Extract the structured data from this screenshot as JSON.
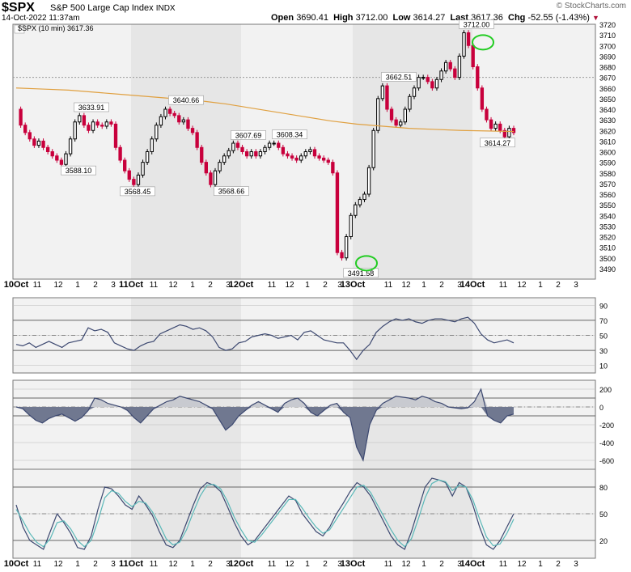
{
  "header": {
    "symbol": "$SPX",
    "name": "S&P 500 Large Cap Index",
    "exchange": "INDX",
    "datetime": "14-Oct-2022 11:37am",
    "brand": "© StockCharts.com",
    "open_label": "Open",
    "open": "3690.41",
    "high_label": "High",
    "high": "3712.00",
    "low_label": "Low",
    "low": "3614.27",
    "last_label": "Last",
    "last": "3617.36",
    "chg_label": "Chg",
    "chg": "-52.55 (-1.43%)",
    "legend": "$SPX (10 min) 3617.36"
  },
  "colors": {
    "up": "#000000",
    "down": "#c8003c",
    "ma": "#e0a040",
    "line": "#3c4870",
    "fast": "#3c4870",
    "slow": "#5ab8b8",
    "fill": "#707890",
    "circle": "#22cc22",
    "shade": "#e6e6e6"
  },
  "chart_data": [
    {
      "type": "candlestick",
      "title": "$SPX (10 min) 3617.36",
      "ylim": [
        3480,
        3720
      ],
      "y_ticks": [
        3490,
        3500,
        3510,
        3520,
        3530,
        3540,
        3550,
        3560,
        3570,
        3580,
        3590,
        3600,
        3610,
        3620,
        3630,
        3640,
        3650,
        3660,
        3670,
        3680,
        3690,
        3700,
        3710,
        3720
      ],
      "x_tick_labels": [
        "10Oct",
        "11",
        "12",
        "1",
        "2",
        "3",
        "11Oct",
        "11",
        "12",
        "1",
        "2",
        "3",
        "12Oct",
        "11",
        "12",
        "1",
        "2",
        "3",
        "13Oct",
        "11",
        "12",
        "1",
        "2",
        "3",
        "14Oct",
        "11",
        "12",
        "1",
        "2",
        "3"
      ],
      "close_path": [
        3640,
        3625,
        3618,
        3612,
        3606,
        3610,
        3604,
        3600,
        3596,
        3592,
        3588,
        3598,
        3612,
        3628,
        3634,
        3625,
        3620,
        3628,
        3625,
        3624,
        3628,
        3626,
        3604,
        3592,
        3582,
        3574,
        3569,
        3578,
        3590,
        3600,
        3612,
        3625,
        3633,
        3640,
        3636,
        3634,
        3628,
        3630,
        3622,
        3618,
        3604,
        3590,
        3580,
        3569,
        3582,
        3590,
        3596,
        3601,
        3608,
        3604,
        3600,
        3596,
        3600,
        3596,
        3600,
        3604,
        3608,
        3608,
        3604,
        3598,
        3596,
        3594,
        3592,
        3596,
        3600,
        3602,
        3596,
        3594,
        3592,
        3590,
        3580,
        3505,
        3500,
        3520,
        3540,
        3550,
        3555,
        3560,
        3585,
        3620,
        3650,
        3662,
        3640,
        3630,
        3625,
        3628,
        3640,
        3652,
        3660,
        3670,
        3670,
        3666,
        3660,
        3668,
        3676,
        3684,
        3678,
        3670,
        3690,
        3712,
        3700,
        3680,
        3660,
        3640,
        3630,
        3622,
        3626,
        3620,
        3614,
        3622,
        3618
      ],
      "annotations": [
        {
          "label": "3633.91",
          "value": 3633.91
        },
        {
          "label": "3588.10",
          "value": 3588.1
        },
        {
          "label": "3568.45",
          "value": 3568.45
        },
        {
          "label": "3640.66",
          "value": 3640.66
        },
        {
          "label": "3568.66",
          "value": 3568.66
        },
        {
          "label": "3607.69",
          "value": 3607.69
        },
        {
          "label": "3608.34",
          "value": 3608.34
        },
        {
          "label": "3491.58",
          "value": 3491.58
        },
        {
          "label": "3662.51",
          "value": 3662.51
        },
        {
          "label": "3712.00",
          "value": 3712.0
        },
        {
          "label": "3614.27",
          "value": 3614.27
        }
      ],
      "moving_average": [
        3660,
        3659,
        3658,
        3656,
        3654,
        3652,
        3650,
        3648,
        3645,
        3641,
        3637,
        3633,
        3629,
        3626,
        3624,
        3622,
        3621,
        3620,
        3619.5,
        3619
      ]
    },
    {
      "type": "line",
      "y_ticks": [
        10,
        30,
        50,
        70,
        90
      ],
      "ylim": [
        0,
        100
      ],
      "values": [
        38,
        36,
        40,
        34,
        38,
        42,
        38,
        34,
        40,
        42,
        44,
        60,
        56,
        58,
        54,
        40,
        36,
        32,
        30,
        36,
        40,
        42,
        52,
        56,
        60,
        64,
        62,
        58,
        60,
        56,
        48,
        34,
        30,
        32,
        40,
        42,
        48,
        50,
        52,
        50,
        46,
        48,
        50,
        44,
        54,
        56,
        50,
        44,
        42,
        40,
        40,
        30,
        18,
        30,
        38,
        54,
        62,
        68,
        72,
        70,
        72,
        68,
        66,
        70,
        72,
        72,
        70,
        68,
        72,
        74,
        66,
        52,
        44,
        40,
        42,
        44,
        40
      ]
    },
    {
      "type": "area",
      "y_ticks": [
        -600,
        -400,
        -200,
        0,
        200
      ],
      "ylim": [
        -700,
        300
      ],
      "values": [
        0,
        -20,
        -90,
        -150,
        -180,
        -130,
        -100,
        -80,
        -120,
        -160,
        -120,
        -40,
        100,
        80,
        40,
        20,
        0,
        -40,
        -120,
        -180,
        -100,
        -20,
        20,
        60,
        80,
        120,
        100,
        80,
        60,
        20,
        -20,
        -140,
        -260,
        -200,
        -100,
        -40,
        20,
        60,
        20,
        -20,
        -60,
        40,
        80,
        100,
        40,
        -60,
        -100,
        -40,
        20,
        40,
        -60,
        -120,
        -450,
        -600,
        -200,
        -40,
        40,
        80,
        120,
        110,
        100,
        80,
        120,
        100,
        60,
        40,
        0,
        -10,
        -20,
        -10,
        60,
        200,
        -100,
        -150,
        -180,
        -100,
        -80
      ]
    },
    {
      "type": "line",
      "y_ticks": [
        20,
        50,
        80
      ],
      "ylim": [
        0,
        100
      ],
      "series": [
        {
          "values": [
            60,
            35,
            20,
            15,
            10,
            30,
            50,
            40,
            28,
            12,
            10,
            25,
            55,
            80,
            78,
            70,
            60,
            55,
            70,
            60,
            48,
            30,
            15,
            12,
            20,
            40,
            60,
            78,
            85,
            82,
            75,
            58,
            40,
            25,
            15,
            20,
            30,
            40,
            50,
            60,
            70,
            65,
            50,
            40,
            30,
            25,
            35,
            50,
            62,
            75,
            85,
            80,
            70,
            55,
            40,
            25,
            15,
            10,
            30,
            55,
            80,
            90,
            88,
            85,
            70,
            85,
            80,
            60,
            35,
            15,
            10,
            20,
            35,
            50
          ]
        },
        {
          "values": [
            55,
            42,
            28,
            18,
            13,
            22,
            40,
            42,
            33,
            20,
            13,
            20,
            42,
            68,
            76,
            73,
            64,
            58,
            64,
            62,
            52,
            38,
            22,
            15,
            18,
            32,
            52,
            70,
            82,
            83,
            78,
            64,
            46,
            32,
            20,
            18,
            26,
            36,
            46,
            56,
            66,
            66,
            56,
            45,
            35,
            28,
            32,
            44,
            56,
            68,
            80,
            82,
            74,
            60,
            46,
            32,
            20,
            13,
            22,
            44,
            68,
            84,
            88,
            86,
            76,
            82,
            80,
            66,
            44,
            24,
            14,
            16,
            28,
            44
          ]
        }
      ]
    }
  ]
}
